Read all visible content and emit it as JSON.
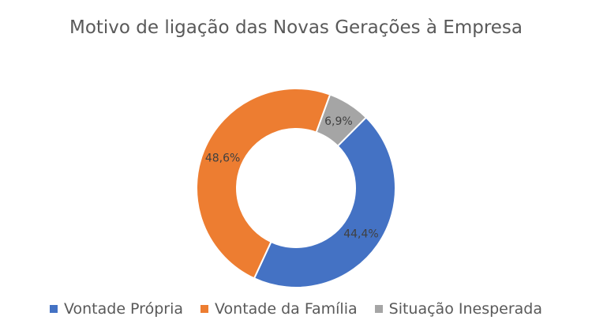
{
  "chart_data": {
    "type": "pie",
    "subtype": "donut",
    "title": "Motivo de ligação das Novas Gerações à Empresa",
    "categories": [
      "Vontade Própria",
      "Vontade da Família",
      "Situação Inesperada"
    ],
    "values": [
      44.4,
      48.6,
      6.9
    ],
    "data_labels": [
      "44,4%",
      "48,6%",
      "6,9%"
    ],
    "colors": [
      "#4472C4",
      "#ED7D31",
      "#A5A5A5"
    ],
    "legend_position": "bottom"
  }
}
